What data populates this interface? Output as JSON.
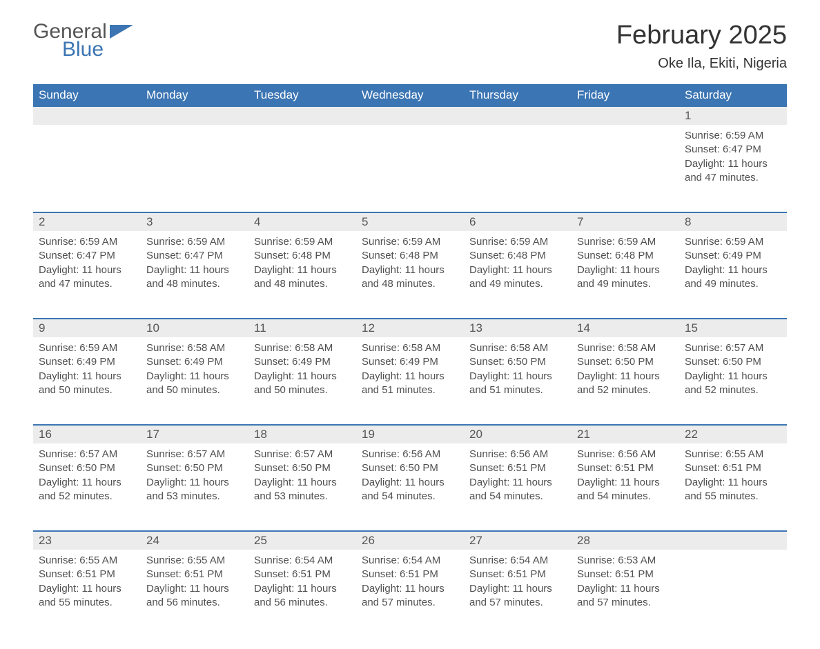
{
  "brand": {
    "line1": "General",
    "line2": "Blue",
    "flag_color": "#3b75b3"
  },
  "header": {
    "month_title": "February 2025",
    "location": "Oke Ila, Ekiti, Nigeria"
  },
  "colors": {
    "brand_blue": "#3b75b3",
    "header_blue": "#3b75b3",
    "row_rule_blue": "#3b75b3",
    "light_grey": "#ececec",
    "text_grey": "#505050",
    "text_dark": "#2b2b2b",
    "background": "#ffffff"
  },
  "typography": {
    "month_title_fontsize": 38,
    "location_fontsize": 20,
    "weekday_fontsize": 17,
    "daynum_fontsize": 17,
    "body_fontsize": 15,
    "font_family": "Arial"
  },
  "calendar": {
    "type": "table",
    "weekdays": [
      "Sunday",
      "Monday",
      "Tuesday",
      "Wednesday",
      "Thursday",
      "Friday",
      "Saturday"
    ],
    "first_weekday_index_of_day1": 6,
    "days": [
      {
        "n": 1,
        "sunrise": "6:59 AM",
        "sunset": "6:47 PM",
        "daylight": "11 hours and 47 minutes."
      },
      {
        "n": 2,
        "sunrise": "6:59 AM",
        "sunset": "6:47 PM",
        "daylight": "11 hours and 47 minutes."
      },
      {
        "n": 3,
        "sunrise": "6:59 AM",
        "sunset": "6:47 PM",
        "daylight": "11 hours and 48 minutes."
      },
      {
        "n": 4,
        "sunrise": "6:59 AM",
        "sunset": "6:48 PM",
        "daylight": "11 hours and 48 minutes."
      },
      {
        "n": 5,
        "sunrise": "6:59 AM",
        "sunset": "6:48 PM",
        "daylight": "11 hours and 48 minutes."
      },
      {
        "n": 6,
        "sunrise": "6:59 AM",
        "sunset": "6:48 PM",
        "daylight": "11 hours and 49 minutes."
      },
      {
        "n": 7,
        "sunrise": "6:59 AM",
        "sunset": "6:48 PM",
        "daylight": "11 hours and 49 minutes."
      },
      {
        "n": 8,
        "sunrise": "6:59 AM",
        "sunset": "6:49 PM",
        "daylight": "11 hours and 49 minutes."
      },
      {
        "n": 9,
        "sunrise": "6:59 AM",
        "sunset": "6:49 PM",
        "daylight": "11 hours and 50 minutes."
      },
      {
        "n": 10,
        "sunrise": "6:58 AM",
        "sunset": "6:49 PM",
        "daylight": "11 hours and 50 minutes."
      },
      {
        "n": 11,
        "sunrise": "6:58 AM",
        "sunset": "6:49 PM",
        "daylight": "11 hours and 50 minutes."
      },
      {
        "n": 12,
        "sunrise": "6:58 AM",
        "sunset": "6:49 PM",
        "daylight": "11 hours and 51 minutes."
      },
      {
        "n": 13,
        "sunrise": "6:58 AM",
        "sunset": "6:50 PM",
        "daylight": "11 hours and 51 minutes."
      },
      {
        "n": 14,
        "sunrise": "6:58 AM",
        "sunset": "6:50 PM",
        "daylight": "11 hours and 52 minutes."
      },
      {
        "n": 15,
        "sunrise": "6:57 AM",
        "sunset": "6:50 PM",
        "daylight": "11 hours and 52 minutes."
      },
      {
        "n": 16,
        "sunrise": "6:57 AM",
        "sunset": "6:50 PM",
        "daylight": "11 hours and 52 minutes."
      },
      {
        "n": 17,
        "sunrise": "6:57 AM",
        "sunset": "6:50 PM",
        "daylight": "11 hours and 53 minutes."
      },
      {
        "n": 18,
        "sunrise": "6:57 AM",
        "sunset": "6:50 PM",
        "daylight": "11 hours and 53 minutes."
      },
      {
        "n": 19,
        "sunrise": "6:56 AM",
        "sunset": "6:50 PM",
        "daylight": "11 hours and 54 minutes."
      },
      {
        "n": 20,
        "sunrise": "6:56 AM",
        "sunset": "6:51 PM",
        "daylight": "11 hours and 54 minutes."
      },
      {
        "n": 21,
        "sunrise": "6:56 AM",
        "sunset": "6:51 PM",
        "daylight": "11 hours and 54 minutes."
      },
      {
        "n": 22,
        "sunrise": "6:55 AM",
        "sunset": "6:51 PM",
        "daylight": "11 hours and 55 minutes."
      },
      {
        "n": 23,
        "sunrise": "6:55 AM",
        "sunset": "6:51 PM",
        "daylight": "11 hours and 55 minutes."
      },
      {
        "n": 24,
        "sunrise": "6:55 AM",
        "sunset": "6:51 PM",
        "daylight": "11 hours and 56 minutes."
      },
      {
        "n": 25,
        "sunrise": "6:54 AM",
        "sunset": "6:51 PM",
        "daylight": "11 hours and 56 minutes."
      },
      {
        "n": 26,
        "sunrise": "6:54 AM",
        "sunset": "6:51 PM",
        "daylight": "11 hours and 57 minutes."
      },
      {
        "n": 27,
        "sunrise": "6:54 AM",
        "sunset": "6:51 PM",
        "daylight": "11 hours and 57 minutes."
      },
      {
        "n": 28,
        "sunrise": "6:53 AM",
        "sunset": "6:51 PM",
        "daylight": "11 hours and 57 minutes."
      }
    ],
    "labels": {
      "sunrise": "Sunrise: ",
      "sunset": "Sunset: ",
      "daylight": "Daylight: "
    }
  }
}
